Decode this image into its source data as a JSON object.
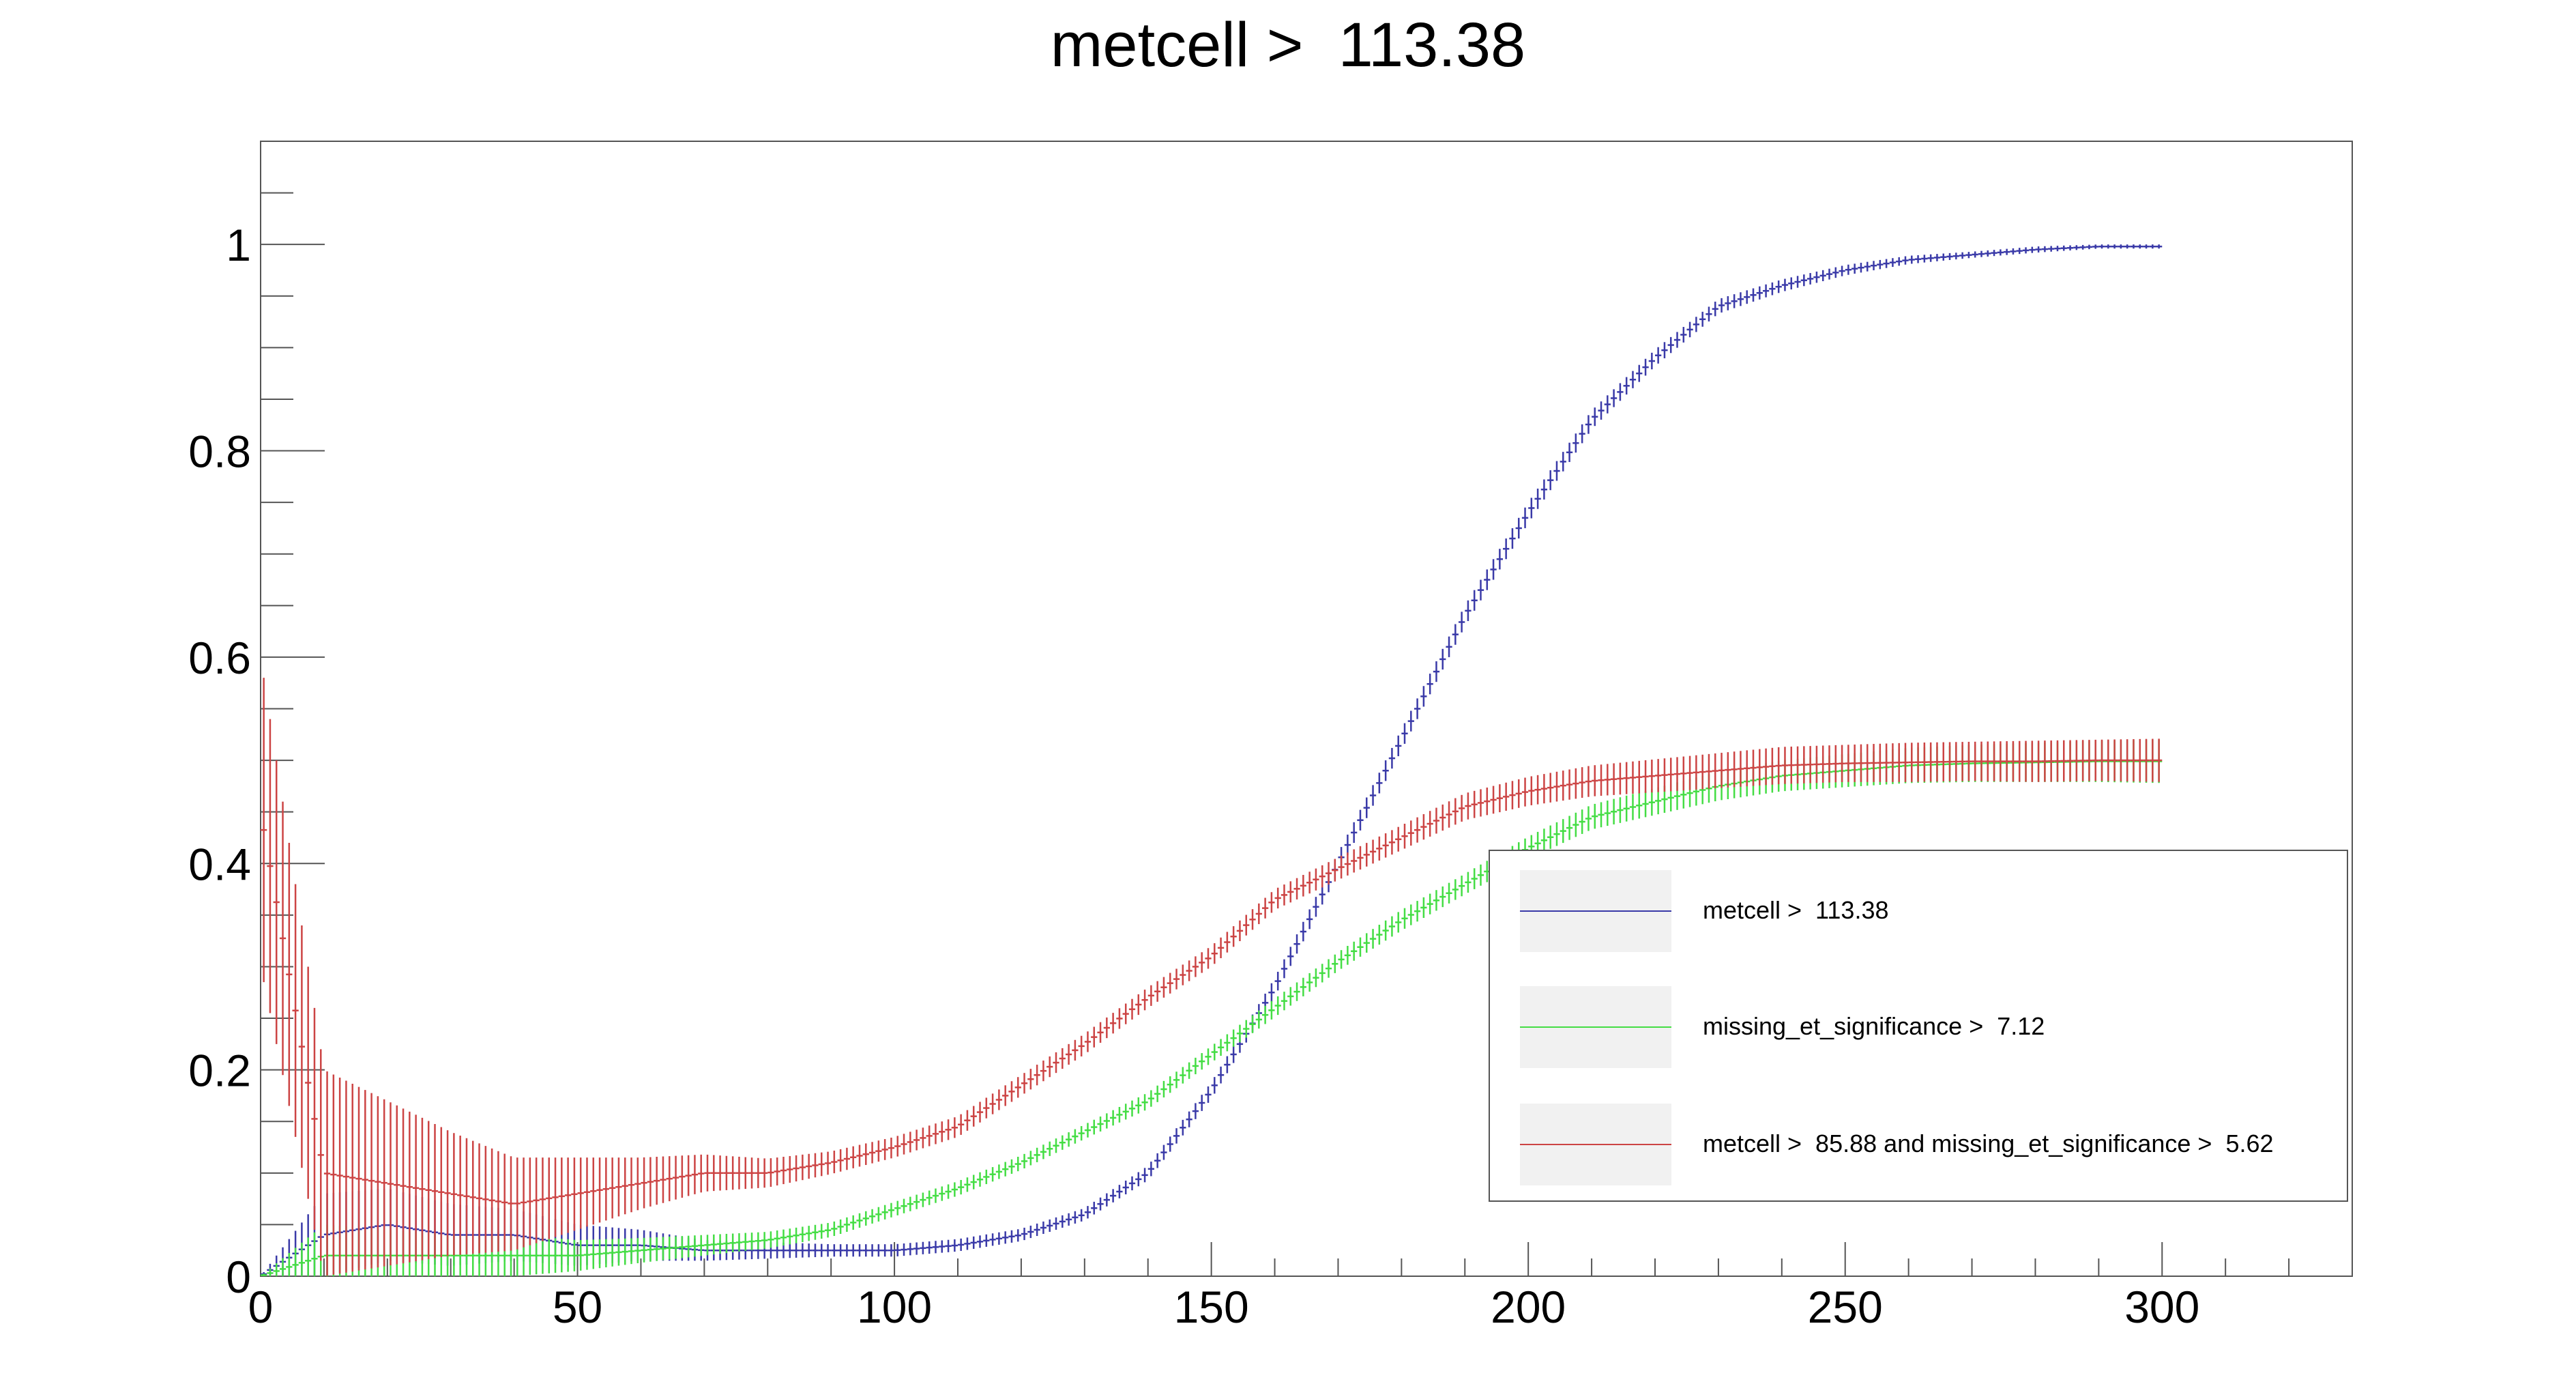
{
  "chart_data": {
    "type": "scatter",
    "title": "metcell >  113.38",
    "xlabel": "",
    "ylabel": "",
    "xlim": [
      0,
      330
    ],
    "ylim": [
      0,
      1.1
    ],
    "x_ticks": [
      0,
      50,
      100,
      150,
      200,
      250,
      300
    ],
    "y_ticks": [
      0,
      0.2,
      0.4,
      0.6,
      0.8,
      1
    ],
    "x_tick_labels": [
      "0",
      "50",
      "100",
      "150",
      "200",
      "250",
      "300"
    ],
    "y_tick_labels": [
      "0",
      "0.2",
      "0.4",
      "0.6",
      "0.8",
      "1"
    ],
    "grid": false,
    "legend_position": "lower-right",
    "x": [
      0,
      10,
      20,
      30,
      40,
      50,
      60,
      70,
      80,
      90,
      100,
      110,
      120,
      130,
      140,
      150,
      160,
      170,
      180,
      190,
      200,
      210,
      220,
      230,
      240,
      250,
      260,
      270,
      280,
      290,
      300
    ],
    "series": [
      {
        "name": "metcell >  113.38",
        "color": "#3a3aa8",
        "values": [
          0.0,
          0.04,
          0.05,
          0.04,
          0.04,
          0.03,
          0.03,
          0.025,
          0.025,
          0.025,
          0.025,
          0.03,
          0.04,
          0.06,
          0.1,
          0.18,
          0.28,
          0.4,
          0.52,
          0.64,
          0.74,
          0.83,
          0.89,
          0.94,
          0.96,
          0.975,
          0.985,
          0.99,
          0.995,
          0.998,
          0.998
        ],
        "yerr": [
          0.0,
          0.04,
          0.035,
          0.03,
          0.025,
          0.02,
          0.015,
          0.01,
          0.008,
          0.006,
          0.006,
          0.006,
          0.006,
          0.006,
          0.007,
          0.008,
          0.009,
          0.01,
          0.01,
          0.01,
          0.01,
          0.009,
          0.008,
          0.007,
          0.006,
          0.005,
          0.004,
          0.003,
          0.003,
          0.002,
          0.002
        ]
      },
      {
        "name": "missing_et_significance >  7.12",
        "color": "#44dd44",
        "values": [
          0.0,
          0.02,
          0.02,
          0.02,
          0.02,
          0.02,
          0.025,
          0.03,
          0.035,
          0.045,
          0.065,
          0.085,
          0.11,
          0.14,
          0.17,
          0.215,
          0.26,
          0.305,
          0.345,
          0.38,
          0.415,
          0.445,
          0.46,
          0.475,
          0.485,
          0.49,
          0.495,
          0.497,
          0.498,
          0.499,
          0.499
        ],
        "yerr": [
          0.0,
          0.03,
          0.025,
          0.02,
          0.02,
          0.015,
          0.012,
          0.01,
          0.008,
          0.007,
          0.007,
          0.007,
          0.007,
          0.007,
          0.008,
          0.008,
          0.009,
          0.009,
          0.01,
          0.01,
          0.011,
          0.012,
          0.013,
          0.014,
          0.015,
          0.016,
          0.017,
          0.018,
          0.019,
          0.02,
          0.021
        ]
      },
      {
        "name": "metcell >  85.88 and missing_et_significance >  5.62",
        "color": "#cc4444",
        "values": [
          0.45,
          0.1,
          0.09,
          0.08,
          0.07,
          0.08,
          0.09,
          0.1,
          0.1,
          0.11,
          0.125,
          0.145,
          0.185,
          0.225,
          0.27,
          0.31,
          0.365,
          0.395,
          0.425,
          0.455,
          0.47,
          0.48,
          0.485,
          0.49,
          0.495,
          0.497,
          0.498,
          0.499,
          0.499,
          0.5,
          0.5
        ],
        "yerr": [
          0.15,
          0.1,
          0.08,
          0.06,
          0.045,
          0.035,
          0.025,
          0.018,
          0.014,
          0.011,
          0.01,
          0.01,
          0.01,
          0.01,
          0.01,
          0.01,
          0.01,
          0.011,
          0.012,
          0.013,
          0.014,
          0.015,
          0.016,
          0.017,
          0.018,
          0.018,
          0.019,
          0.019,
          0.02,
          0.02,
          0.021
        ]
      }
    ]
  }
}
